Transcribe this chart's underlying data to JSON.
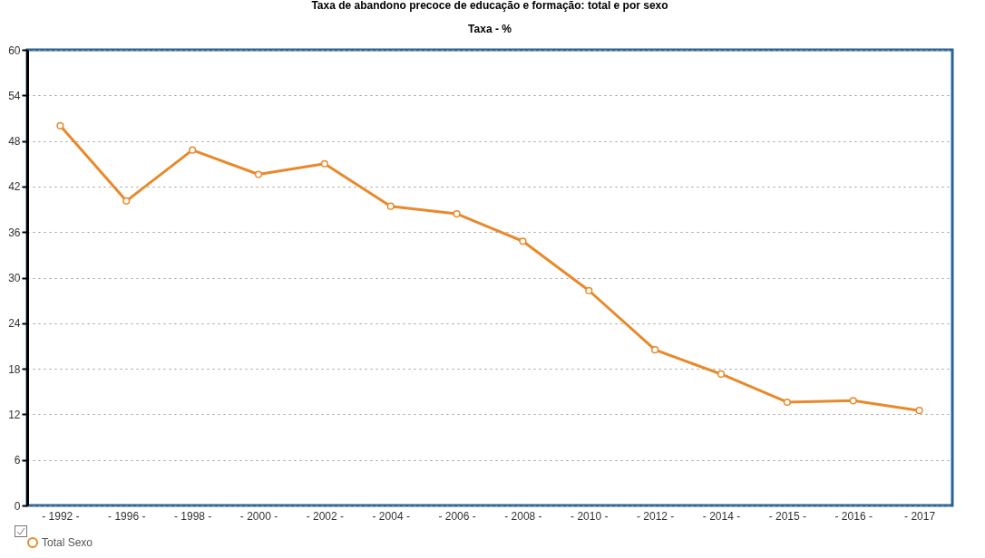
{
  "chart_data": {
    "type": "line",
    "title": "Taxa de abandono precoce de educação e formação: total e por sexo",
    "subtitle": "Taxa - %",
    "categories": [
      "- 1992 -",
      "- 1996 -",
      "- 1998 -",
      "- 2000 -",
      "- 2002 -",
      "- 2004 -",
      "- 2006 -",
      "- 2008 -",
      "- 2010 -",
      "- 2012 -",
      "- 2014 -",
      "- 2015 -",
      "- 2016 -",
      "- 2017"
    ],
    "series": [
      {
        "name": "Total Sexo",
        "color": "#e8892b",
        "values": [
          50.0,
          40.1,
          46.8,
          43.6,
          45.0,
          39.4,
          38.4,
          34.8,
          28.3,
          20.5,
          17.3,
          13.6,
          13.8,
          12.5
        ]
      }
    ],
    "ylim": [
      0,
      60
    ],
    "yticks": [
      0,
      6,
      12,
      18,
      24,
      30,
      36,
      42,
      48,
      54,
      60
    ],
    "grid": "y",
    "legend": "bottom",
    "marker": "circle",
    "line_style": "solid"
  }
}
